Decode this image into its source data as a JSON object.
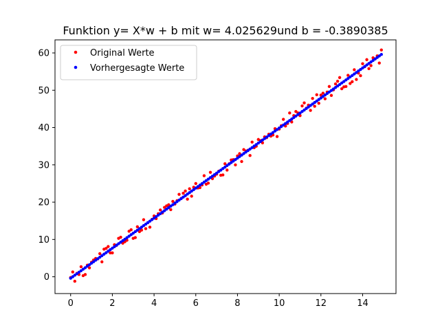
{
  "chart_data": {
    "type": "scatter",
    "title": "Funktion y= X*w + b  mit w= 4.025629und b = -0.3890385",
    "xlabel": "",
    "ylabel": "",
    "xlim": [
      -0.75,
      15.6
    ],
    "ylim": [
      -4.5,
      63.5
    ],
    "x_ticks": [
      0,
      2,
      4,
      6,
      8,
      10,
      12,
      14
    ],
    "y_ticks": [
      0,
      10,
      20,
      30,
      40,
      50,
      60
    ],
    "grid": false,
    "legend_position": "top-left",
    "model": {
      "w": 4.025629,
      "b": -0.3890385
    },
    "series": [
      {
        "name": "Original Werte",
        "color": "#ff0000",
        "marker": "dot",
        "x": [
          0.0,
          0.1,
          0.2,
          0.3,
          0.4,
          0.5,
          0.6,
          0.7,
          0.8,
          0.9,
          1.0,
          1.1,
          1.2,
          1.3,
          1.4,
          1.5,
          1.6,
          1.7,
          1.8,
          1.9,
          2.0,
          2.1,
          2.2,
          2.3,
          2.4,
          2.5,
          2.6,
          2.7,
          2.8,
          2.9,
          3.0,
          3.1,
          3.2,
          3.3,
          3.4,
          3.5,
          3.6,
          3.7,
          3.8,
          3.9,
          4.0,
          4.1,
          4.2,
          4.3,
          4.4,
          4.5,
          4.6,
          4.7,
          4.8,
          4.9,
          5.0,
          5.1,
          5.2,
          5.3,
          5.4,
          5.5,
          5.6,
          5.7,
          5.8,
          5.9,
          6.0,
          6.1,
          6.2,
          6.3,
          6.4,
          6.5,
          6.6,
          6.7,
          6.8,
          6.9,
          7.0,
          7.1,
          7.2,
          7.3,
          7.4,
          7.5,
          7.6,
          7.7,
          7.8,
          7.9,
          8.0,
          8.1,
          8.2,
          8.3,
          8.4,
          8.5,
          8.6,
          8.7,
          8.8,
          8.9,
          9.0,
          9.1,
          9.2,
          9.3,
          9.4,
          9.5,
          9.6,
          9.7,
          9.8,
          9.9,
          10.0,
          10.1,
          10.2,
          10.3,
          10.4,
          10.5,
          10.6,
          10.7,
          10.8,
          10.9,
          11.0,
          11.1,
          11.2,
          11.3,
          11.4,
          11.5,
          11.6,
          11.7,
          11.8,
          11.9,
          12.0,
          12.1,
          12.2,
          12.3,
          12.4,
          12.5,
          12.6,
          12.7,
          12.8,
          12.9,
          13.0,
          13.1,
          13.2,
          13.3,
          13.4,
          13.5,
          13.6,
          13.7,
          13.8,
          13.9,
          14.0,
          14.1,
          14.2,
          14.3,
          14.4,
          14.5,
          14.6,
          14.7,
          14.8,
          14.9
        ],
        "y": [
          -0.2,
          1.3,
          -1.2,
          0.9,
          0.6,
          2.7,
          0.3,
          0.6,
          3.1,
          2.4,
          3.9,
          4.5,
          4.9,
          4.8,
          6.2,
          4.0,
          7.4,
          7.6,
          8.1,
          6.4,
          6.4,
          8.6,
          8.4,
          10.3,
          10.6,
          9.0,
          9.4,
          9.8,
          12.2,
          12.6,
          10.3,
          10.5,
          13.4,
          12.1,
          12.5,
          15.3,
          12.9,
          14.5,
          13.3,
          15.4,
          16.3,
          15.6,
          16.9,
          17.9,
          17.1,
          18.6,
          19.0,
          19.3,
          18.0,
          20.2,
          19.5,
          20.4,
          22.1,
          21.0,
          22.4,
          23.0,
          20.8,
          23.6,
          21.6,
          24.0,
          25.0,
          23.8,
          23.9,
          24.6,
          27.1,
          24.8,
          25.1,
          28.0,
          26.3,
          27.0,
          27.5,
          28.3,
          27.2,
          27.3,
          30.3,
          28.6,
          30.3,
          31.3,
          31.4,
          30.0,
          32.4,
          33.0,
          30.9,
          34.1,
          33.7,
          33.9,
          32.5,
          36.1,
          34.6,
          35.0,
          36.8,
          36.5,
          35.9,
          37.5,
          37.3,
          38.2,
          37.7,
          38.0,
          39.7,
          37.6,
          39.6,
          40.5,
          42.2,
          40.4,
          41.1,
          43.9,
          41.5,
          43.2,
          44.3,
          43.9,
          43.2,
          45.8,
          46.6,
          45.2,
          46.0,
          44.6,
          47.8,
          45.7,
          48.8,
          46.5,
          48.7,
          49.2,
          47.7,
          49.5,
          51.0,
          48.6,
          50.1,
          51.7,
          52.4,
          53.4,
          50.4,
          50.9,
          51.0,
          54.0,
          51.8,
          52.3,
          55.5,
          52.9,
          54.6,
          53.9,
          57.1,
          56.3,
          58.2,
          55.8,
          56.6,
          58.7,
          58.4,
          59.2,
          57.3,
          60.8
        ]
      },
      {
        "name": "Vorhergesagte Werte",
        "color": "#0000ff",
        "marker": "dot",
        "line": {
          "x_start": 0.0,
          "x_end": 14.9,
          "step": 0.1
        }
      }
    ]
  }
}
